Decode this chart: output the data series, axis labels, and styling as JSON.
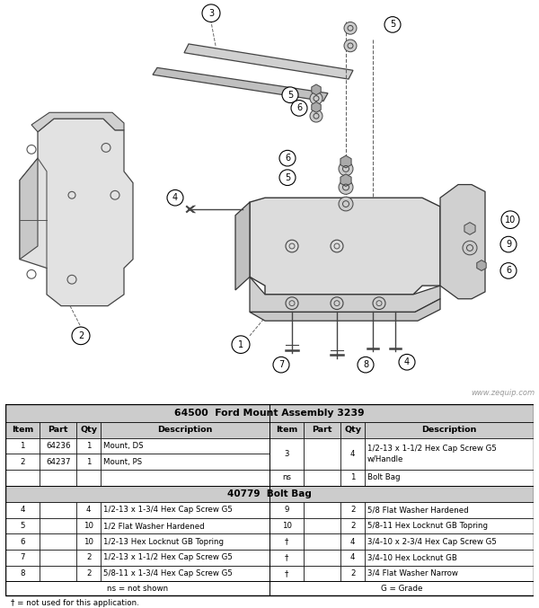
{
  "title": "64500  Ford Mount Assembly 3239",
  "subtitle_bolt": "40779  Bolt Bag",
  "watermark": "www.zequip.com",
  "footnote": "† = not used for this application.",
  "footer_left": "ns = not shown",
  "footer_right": "G = Grade",
  "header_cols": [
    "Item",
    "Part",
    "Qty",
    "Description"
  ],
  "top_left_rows": [
    [
      "1",
      "64236",
      "1",
      "Mount, DS"
    ],
    [
      "2",
      "64237",
      "1",
      "Mount, PS"
    ],
    [
      "",
      "",
      "",
      ""
    ]
  ],
  "top_right_item3": [
    "3",
    "",
    "4",
    "1/2-13 x 1-1/2 Hex Cap Screw G5\nw/Handle"
  ],
  "top_right_ns": [
    "ns",
    "",
    "1",
    "Bolt Bag"
  ],
  "bolt_left_rows": [
    [
      "4",
      "",
      "4",
      "1/2-13 x 1-3/4 Hex Cap Screw G5"
    ],
    [
      "5",
      "",
      "10",
      "1/2 Flat Washer Hardened"
    ],
    [
      "6",
      "",
      "10",
      "1/2-13 Hex Locknut GB Topring"
    ],
    [
      "7",
      "",
      "2",
      "1/2-13 x 1-1/2 Hex Cap Screw G5"
    ],
    [
      "8",
      "",
      "2",
      "5/8-11 x 1-3/4 Hex Cap Screw G5"
    ]
  ],
  "bolt_right_rows": [
    [
      "9",
      "",
      "2",
      "5/8 Flat Washer Hardened"
    ],
    [
      "10",
      "",
      "2",
      "5/8-11 Hex Locknut GB Topring"
    ],
    [
      "†",
      "",
      "4",
      "3/4-10 x 2-3/4 Hex Cap Screw G5"
    ],
    [
      "†",
      "",
      "4",
      "3/4-10 Hex Locknut GB"
    ],
    [
      "†",
      "",
      "2",
      "3/4 Flat Washer Narrow"
    ]
  ],
  "bg_color": "#ffffff",
  "table_header_bg": "#cccccc",
  "table_section_bg": "#cccccc",
  "table_border": "#000000",
  "text_color": "#000000",
  "diagram_bg": "#ffffff",
  "figure_width": 6.0,
  "figure_height": 6.77
}
